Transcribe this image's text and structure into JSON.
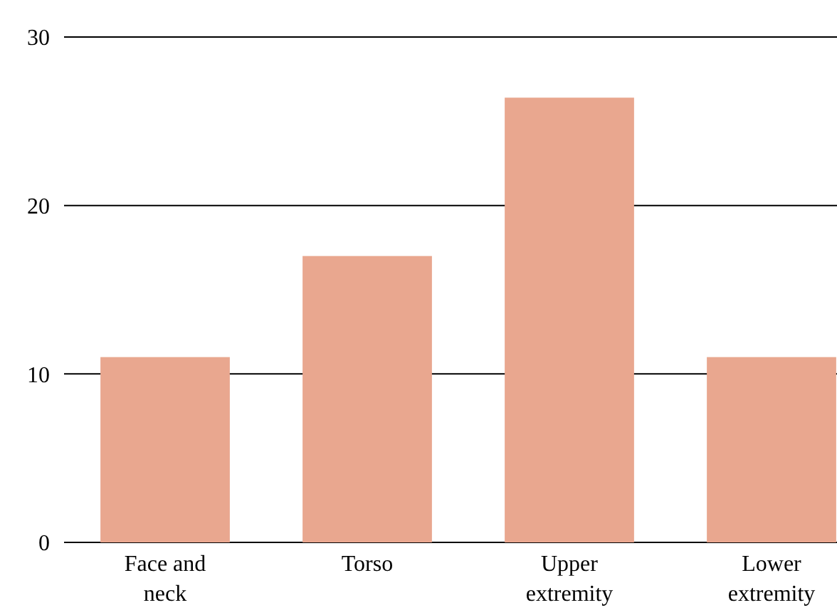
{
  "chart_data": {
    "type": "bar",
    "categories": [
      "Face and neck",
      "Torso",
      "Upper extremity",
      "Lower extremity"
    ],
    "values": [
      11,
      17,
      26.4,
      11
    ],
    "color": "#e9a78f",
    "ylim": [
      0,
      30
    ],
    "yticks": [
      0,
      10,
      20,
      30
    ],
    "grid": "y"
  }
}
